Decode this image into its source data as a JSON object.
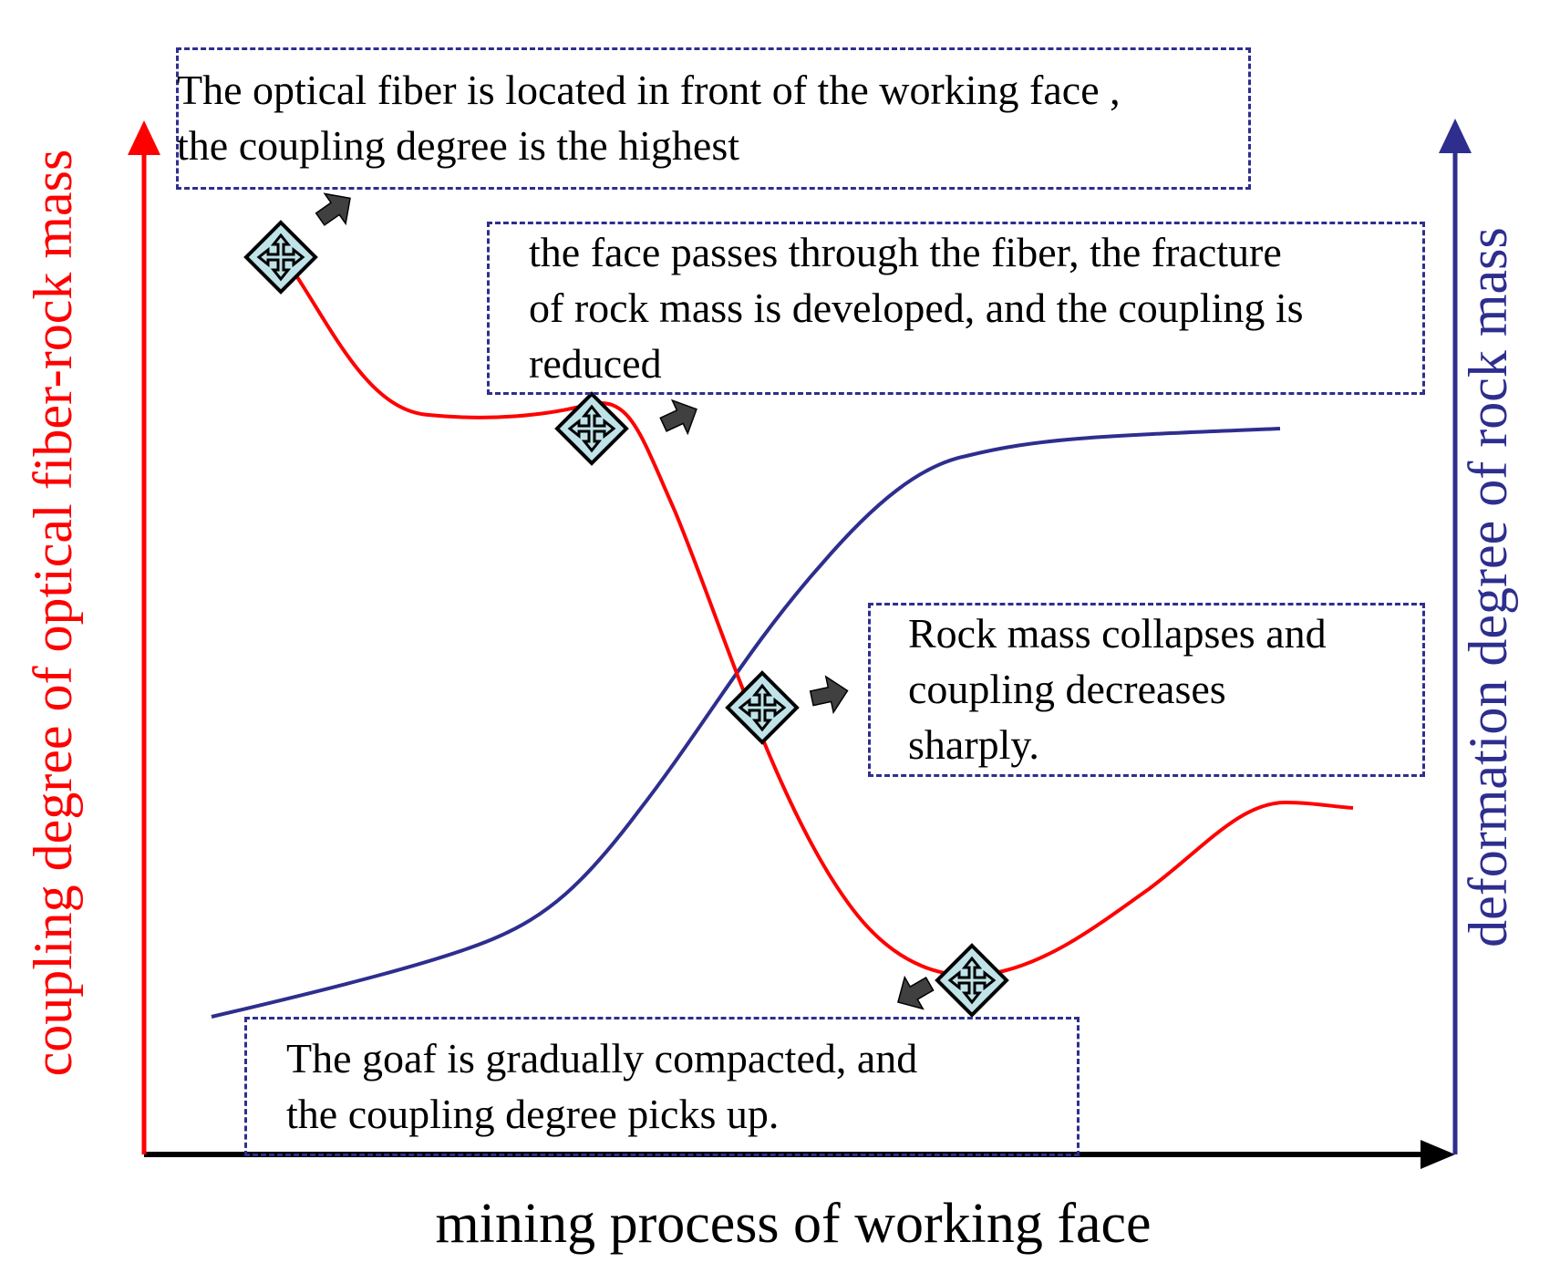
{
  "colors": {
    "coupling_curve": "#ff0000",
    "deformation_curve": "#2e2e8f",
    "left_axis": "#ff0000",
    "right_axis": "#2e2e8f",
    "x_axis": "#000000",
    "callout_border": "#2e2e8f",
    "marker_fill": "#bfe3e8",
    "pointer_arrow": "#404040"
  },
  "axes": {
    "x_title": "mining process of working face",
    "left_title": "coupling degree of optical fiber-rock mass",
    "right_title": "deformation degree of rock mass"
  },
  "callouts": [
    {
      "lines": [
        "The optical fiber is located in front of the working face ,",
        "the coupling degree is the highest"
      ]
    },
    {
      "lines": [
        "the face passes through the fiber, the fracture",
        "of rock mass is developed, and the coupling is",
        "reduced"
      ]
    },
    {
      "lines": [
        "Rock mass collapses and",
        "coupling decreases",
        "sharply."
      ]
    },
    {
      "lines": [
        "The goaf is gradually compacted, and",
        "the coupling degree picks up."
      ]
    }
  ],
  "markers": [
    {
      "icon": "move-cross-icon",
      "pointer": "up-right"
    },
    {
      "icon": "move-cross-icon",
      "pointer": "up-right"
    },
    {
      "icon": "move-cross-icon",
      "pointer": "right"
    },
    {
      "icon": "move-cross-icon",
      "pointer": "down-left"
    }
  ]
}
